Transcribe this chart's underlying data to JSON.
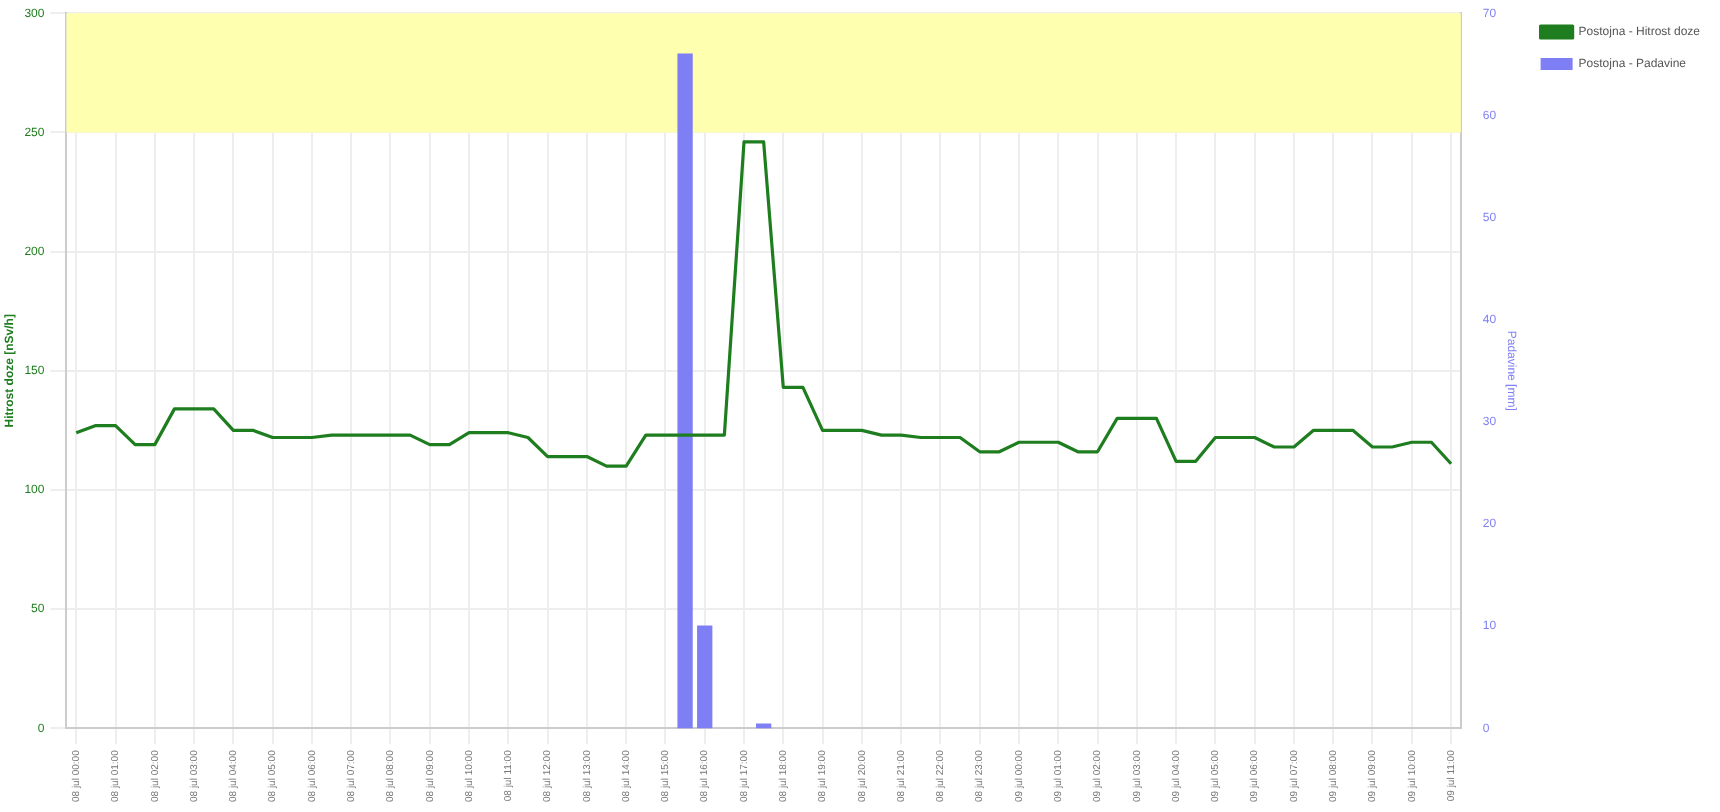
{
  "chart_data": {
    "type": "line",
    "categories": [
      "08 jul 00:00",
      null,
      "08 jul 01:00",
      null,
      "08 jul 02:00",
      null,
      "08 jul 03:00",
      null,
      "08 jul 04:00",
      null,
      "08 jul 05:00",
      null,
      "08 jul 06:00",
      null,
      "08 jul 07:00",
      null,
      "08 jul 08:00",
      null,
      "08 jul 09:00",
      null,
      "08 jul 10:00",
      null,
      "08 jul 11:00",
      null,
      "08 jul 12:00",
      null,
      "08 jul 13:00",
      null,
      "08 jul 14:00",
      null,
      "08 jul 15:00",
      null,
      "08 jul 16:00",
      null,
      "08 jul 17:00",
      null,
      "08 jul 18:00",
      null,
      "08 jul 19:00",
      null,
      "08 jul 20:00",
      null,
      "08 jul 21:00",
      null,
      "08 jul 22:00",
      null,
      "08 jul 23:00",
      null,
      "09 jul 00:00",
      null,
      "09 jul 01:00",
      null,
      "09 jul 02:00",
      null,
      "09 jul 03:00",
      null,
      "09 jul 04:00",
      null,
      "09 jul 05:00",
      null,
      "09 jul 06:00",
      null,
      "09 jul 07:00",
      null,
      "09 jul 08:00",
      null,
      "09 jul 09:00",
      null,
      "09 jul 10:00",
      null,
      "09 jul 11:00"
    ],
    "ylabel": "Hitrost doze [nSv/h]",
    "ylim": [
      0,
      300
    ],
    "yticks": [
      0,
      50,
      100,
      150,
      200,
      250,
      300
    ],
    "y2label": "Padavine [mm]",
    "y2lim": [
      0,
      70
    ],
    "y2ticks": [
      0,
      10,
      20,
      30,
      40,
      50,
      60,
      70
    ],
    "grid": true,
    "legend": "top right",
    "marker": "none",
    "bands": [
      {
        "axis": "y",
        "from": 250,
        "to": 300,
        "color": "#ffffb0"
      }
    ],
    "series": [
      {
        "name": "Postojna - Hitrost doze",
        "color": "#1e7d1e",
        "values": [
          124,
          127,
          127,
          119,
          119,
          134,
          134,
          134,
          125,
          125,
          122,
          122,
          122,
          123,
          123,
          123,
          123,
          123,
          119,
          119,
          124,
          124,
          124,
          122,
          114,
          114,
          114,
          110,
          110,
          123,
          123,
          123,
          123,
          123,
          246,
          246,
          143,
          143,
          125,
          125,
          125,
          123,
          123,
          122,
          122,
          122,
          116,
          116,
          120,
          120,
          120,
          116,
          116,
          130,
          130,
          130,
          112,
          112,
          122,
          122,
          122,
          118,
          118,
          125,
          125,
          125,
          118,
          118,
          120,
          120,
          111
        ]
      },
      {
        "name": "Postojna - Padavine",
        "type": "bar",
        "axis": "y2",
        "color": "#7f7ff5",
        "values": [
          null,
          null,
          null,
          null,
          null,
          null,
          null,
          null,
          null,
          null,
          null,
          null,
          null,
          null,
          null,
          null,
          null,
          null,
          null,
          null,
          null,
          null,
          null,
          null,
          null,
          null,
          null,
          null,
          null,
          null,
          null,
          66,
          10,
          null,
          null,
          0.4,
          null,
          null,
          null,
          null,
          null,
          null,
          null,
          null,
          null,
          null,
          null,
          null,
          null,
          null,
          null,
          null,
          null,
          null,
          null,
          null,
          null,
          null,
          null,
          null,
          null,
          null,
          null,
          null,
          null,
          null,
          null,
          null,
          null,
          null,
          null
        ]
      }
    ]
  }
}
